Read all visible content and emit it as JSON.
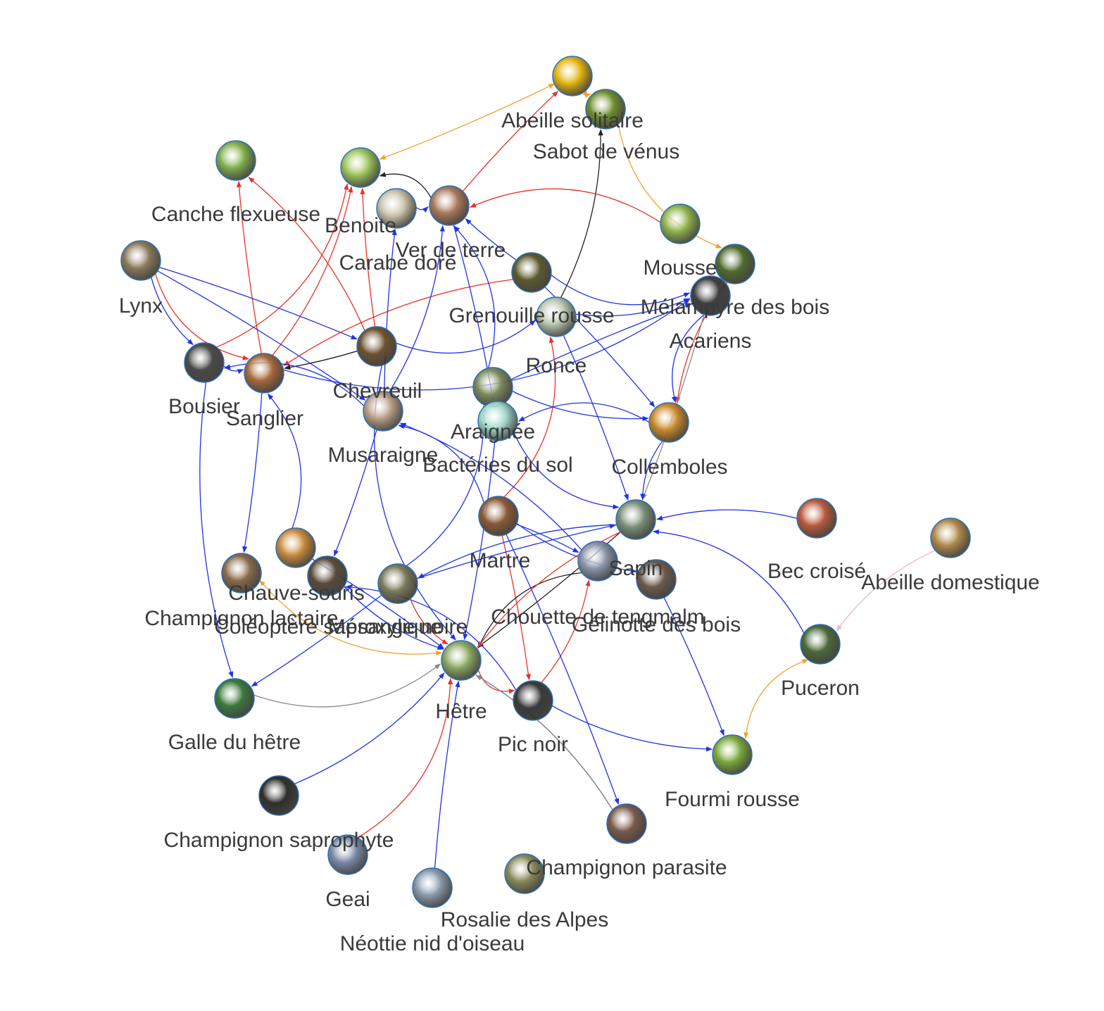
{
  "colors": {
    "predation": "#1f33e6",
    "eaten_by_red": "#e8322a",
    "pollination": "#f0a22c",
    "other": "#222222",
    "grey": "#8a8a8a",
    "pink": "#f3b2c8",
    "label": "#3a3a3a",
    "ring": "#2f6fb8"
  },
  "nodes": [
    {
      "id": "abeille_solitaire",
      "label": "Abeille solitaire",
      "icon": "sunflower-bee-photo",
      "tint": "#e3b40f"
    },
    {
      "id": "sabot_de_venus",
      "label": "Sabot de vénus",
      "icon": "orchid-photo",
      "tint": "#6f8f2c"
    },
    {
      "id": "canche_flexueuse",
      "label": "Canche flexueuse",
      "icon": "grass-photo",
      "tint": "#7fae4a"
    },
    {
      "id": "benoite",
      "label": "Benoite",
      "icon": "plant-photo",
      "tint": "#9cc45a"
    },
    {
      "id": "carabe_dore",
      "label": "Carabe doré",
      "icon": "beetle-photo",
      "tint": "#c9c0a8"
    },
    {
      "id": "ver_de_terre",
      "label": "Ver de terre",
      "icon": "worm-photo",
      "tint": "#a9795a"
    },
    {
      "id": "mousse",
      "label": "Mousse",
      "icon": "moss-photo",
      "tint": "#8fb24a"
    },
    {
      "id": "melampyre",
      "label": "Mélampyre des bois",
      "icon": "flower-photo",
      "tint": "#4f6a2e"
    },
    {
      "id": "lynx",
      "label": "Lynx",
      "icon": "lynx-photo",
      "tint": "#8a7a5a"
    },
    {
      "id": "grenouille_rousse",
      "label": "Grenouille rousse",
      "icon": "frog-photo",
      "tint": "#5e5a2e"
    },
    {
      "id": "acariens",
      "label": "Acariens",
      "icon": "mite-photo",
      "tint": "#3f3f3f"
    },
    {
      "id": "ronce",
      "label": "Ronce",
      "icon": "bramble-photo",
      "tint": "#b8c7b0"
    },
    {
      "id": "bousier",
      "label": "Bousier",
      "icon": "dung-beetle-photo",
      "tint": "#4a4a48"
    },
    {
      "id": "sanglier",
      "label": "Sanglier",
      "icon": "boar-photo",
      "tint": "#a5683a"
    },
    {
      "id": "chevreuil",
      "label": "Chevreuil",
      "icon": "deer-photo",
      "tint": "#6e5330"
    },
    {
      "id": "musaraigne",
      "label": "Musaraigne",
      "icon": "shrew-photo",
      "tint": "#b79e84"
    },
    {
      "id": "araignee",
      "label": "Araignée",
      "icon": "spider-photo",
      "tint": "#7b8a5c"
    },
    {
      "id": "bacteries_du_sol",
      "label": "Bactéries du sol",
      "icon": "bacteria-photo",
      "tint": "#9fd8c8"
    },
    {
      "id": "collemboles",
      "label": "Collemboles",
      "icon": "springtail-photo",
      "tint": "#c98a2a"
    },
    {
      "id": "sapin",
      "label": "Sapin",
      "icon": "fir-photo",
      "tint": "#7b8f78"
    },
    {
      "id": "bec_croise",
      "label": "Bec croisé",
      "icon": "crossbill-photo",
      "tint": "#b85a3a"
    },
    {
      "id": "abeille_domestique",
      "label": "Abeille domestique",
      "icon": "honeybee-photo",
      "tint": "#b08a4a"
    },
    {
      "id": "martre",
      "label": "Martre",
      "icon": "marten-photo",
      "tint": "#8a5a36"
    },
    {
      "id": "chauve_souris",
      "label": "Chauve-souris",
      "icon": "bat-photo",
      "tint": "#c88a3a"
    },
    {
      "id": "champignon_lactaire",
      "label": "Champignon lactaire",
      "icon": "mushroom-photo",
      "tint": "#8a6a4a"
    },
    {
      "id": "coleoptere_saproxylique",
      "label": "Coléoptère saproxylique",
      "icon": "saproxylic-beetle-photo",
      "tint": "#5a4a3a"
    },
    {
      "id": "mesange_noire",
      "label": "Mésange noire",
      "icon": "tit-photo",
      "tint": "#7a7a5a"
    },
    {
      "id": "chouette",
      "label": "Chouette de tengmalm",
      "icon": "owl-photo",
      "tint": "#8a94a8"
    },
    {
      "id": "gelinotte",
      "label": "Gélinotte des bois",
      "icon": "grouse-photo",
      "tint": "#6a5a4a"
    },
    {
      "id": "puceron",
      "label": "Puceron",
      "icon": "aphid-photo",
      "tint": "#4a6a3a"
    },
    {
      "id": "hetre",
      "label": "Hêtre",
      "icon": "beech-photo",
      "tint": "#8aa860"
    },
    {
      "id": "galle_du_hetre",
      "label": "Galle du hêtre",
      "icon": "gall-photo",
      "tint": "#3a7a3a"
    },
    {
      "id": "pic_noir",
      "label": "Pic noir",
      "icon": "woodpecker-photo",
      "tint": "#3a3a3a"
    },
    {
      "id": "fourmi_rousse",
      "label": "Fourmi rousse",
      "icon": "ant-photo",
      "tint": "#7aa83a"
    },
    {
      "id": "champignon_saprophyte",
      "label": "Champignon saprophyte",
      "icon": "saprophyte-photo",
      "tint": "#2e2e2a"
    },
    {
      "id": "champignon_parasite",
      "label": "Champignon parasite",
      "icon": "parasite-fungus-photo",
      "tint": "#7a5a4a"
    },
    {
      "id": "geai",
      "label": "Geai",
      "icon": "jay-photo",
      "tint": "#7a8aa8"
    },
    {
      "id": "rosalie",
      "label": "Rosalie des Alpes",
      "icon": "rosalia-photo",
      "tint": "#8a9aaa"
    },
    {
      "id": "neottie",
      "label": "Néottie nid d'oiseau",
      "icon": "orchid-nest-photo",
      "tint": "#8a8a5a"
    }
  ],
  "edges": [
    {
      "s": "abeille_solitaire",
      "t": "benoite",
      "c": "pollination",
      "both": true
    },
    {
      "s": "abeille_solitaire",
      "t": "sabot_de_venus",
      "c": "pollination",
      "both": true
    },
    {
      "s": "sabot_de_venus",
      "t": "melampyre",
      "c": "pollination",
      "both": false
    },
    {
      "s": "ver_de_terre",
      "t": "abeille_solitaire",
      "c": "eaten_by_red"
    },
    {
      "s": "ronce",
      "t": "sabot_de_venus",
      "c": "other"
    },
    {
      "s": "ver_de_terre",
      "t": "benoite",
      "c": "other"
    },
    {
      "s": "grenouille_rousse",
      "t": "ver_de_terre",
      "c": "predation"
    },
    {
      "s": "carabe_dore",
      "t": "ver_de_terre",
      "c": "predation"
    },
    {
      "s": "mousse",
      "t": "ver_de_terre",
      "c": "eaten_by_red"
    },
    {
      "s": "sanglier",
      "t": "canche_flexueuse",
      "c": "eaten_by_red"
    },
    {
      "s": "sanglier",
      "t": "benoite",
      "c": "eaten_by_red"
    },
    {
      "s": "bousier",
      "t": "benoite",
      "c": "eaten_by_red"
    },
    {
      "s": "chevreuil",
      "t": "benoite",
      "c": "eaten_by_red"
    },
    {
      "s": "chevreuil",
      "t": "canche_flexueuse",
      "c": "eaten_by_red"
    },
    {
      "s": "lynx",
      "t": "sanglier",
      "c": "eaten_by_red"
    },
    {
      "s": "lynx",
      "t": "chevreuil",
      "c": "predation"
    },
    {
      "s": "lynx",
      "t": "bousier",
      "c": "predation"
    },
    {
      "s": "sanglier",
      "t": "acariens",
      "c": "predation"
    },
    {
      "s": "chevreuil",
      "t": "sanglier",
      "c": "eaten_by_red"
    },
    {
      "s": "grenouille_rousse",
      "t": "sanglier",
      "c": "eaten_by_red"
    },
    {
      "s": "chevreuil",
      "t": "ronce",
      "c": "predation"
    },
    {
      "s": "chevreuil",
      "t": "sanglier",
      "c": "other"
    },
    {
      "s": "bousier",
      "t": "sanglier",
      "c": "predation"
    },
    {
      "s": "musaraigne",
      "t": "bousier",
      "c": "predation"
    },
    {
      "s": "musaraigne",
      "t": "carabe_dore",
      "c": "predation"
    },
    {
      "s": "musaraigne",
      "t": "ver_de_terre",
      "c": "predation"
    },
    {
      "s": "araignee",
      "t": "ver_de_terre",
      "c": "predation"
    },
    {
      "s": "araignee",
      "t": "acariens",
      "c": "predation"
    },
    {
      "s": "araignee",
      "t": "collemboles",
      "c": "predation"
    },
    {
      "s": "grenouille_rousse",
      "t": "acariens",
      "c": "predation"
    },
    {
      "s": "grenouille_rousse",
      "t": "collemboles",
      "c": "predation"
    },
    {
      "s": "melampyre",
      "t": "collemboles",
      "c": "eaten_by_red"
    },
    {
      "s": "acariens",
      "t": "collemboles",
      "c": "predation"
    },
    {
      "s": "acariens",
      "t": "sapin",
      "c": "grey"
    },
    {
      "s": "collemboles",
      "t": "sapin",
      "c": "predation"
    },
    {
      "s": "bacteries_du_sol",
      "t": "sapin",
      "c": "predation"
    },
    {
      "s": "bacteries_du_sol",
      "t": "hetre",
      "c": "predation"
    },
    {
      "s": "bec_croise",
      "t": "sapin",
      "c": "predation"
    },
    {
      "s": "puceron",
      "t": "sapin",
      "c": "predation"
    },
    {
      "s": "ronce",
      "t": "sapin",
      "c": "predation"
    },
    {
      "s": "abeille_domestique",
      "t": "puceron",
      "c": "pink"
    },
    {
      "s": "puceron",
      "t": "fourmi_rousse",
      "c": "pollination",
      "both": true
    },
    {
      "s": "gelinotte",
      "t": "fourmi_rousse",
      "c": "predation"
    },
    {
      "s": "pic_noir",
      "t": "fourmi_rousse",
      "c": "predation"
    },
    {
      "s": "martre",
      "t": "ronce",
      "c": "eaten_by_red"
    },
    {
      "s": "martre",
      "t": "chouette",
      "c": "predation"
    },
    {
      "s": "martre",
      "t": "gelinotte",
      "c": "predation"
    },
    {
      "s": "martre",
      "t": "musaraigne",
      "c": "predation"
    },
    {
      "s": "martre",
      "t": "pic_noir",
      "c": "eaten_by_red"
    },
    {
      "s": "chouette",
      "t": "musaraigne",
      "c": "predation"
    },
    {
      "s": "chouette",
      "t": "hetre",
      "c": "other"
    },
    {
      "s": "sapin",
      "t": "hetre",
      "c": "other"
    },
    {
      "s": "pic_noir",
      "t": "chouette",
      "c": "eaten_by_red"
    },
    {
      "s": "pic_noir",
      "t": "coleoptere_saproxylique",
      "c": "predation"
    },
    {
      "s": "mesange_noire",
      "t": "sapin",
      "c": "predation"
    },
    {
      "s": "mesange_noire",
      "t": "hetre",
      "c": "eaten_by_red"
    },
    {
      "s": "mesange_noire",
      "t": "araignee",
      "c": "predation"
    },
    {
      "s": "mesange_noire",
      "t": "galle_du_hetre",
      "c": "predation"
    },
    {
      "s": "sapin",
      "t": "mesange_noire",
      "c": "predation"
    },
    {
      "s": "chauve_souris",
      "t": "sanglier",
      "c": "predation"
    },
    {
      "s": "chauve_souris",
      "t": "hetre",
      "c": "predation"
    },
    {
      "s": "coleoptere_saproxylique",
      "t": "hetre",
      "c": "predation"
    },
    {
      "s": "champignon_lactaire",
      "t": "hetre",
      "c": "pollination",
      "both": true
    },
    {
      "s": "sanglier",
      "t": "champignon_lactaire",
      "c": "predation"
    },
    {
      "s": "bousier",
      "t": "galle_du_hetre",
      "c": "predation"
    },
    {
      "s": "galle_du_hetre",
      "t": "hetre",
      "c": "grey"
    },
    {
      "s": "musaraigne",
      "t": "coleoptere_saproxylique",
      "c": "predation"
    },
    {
      "s": "champignon_saprophyte",
      "t": "hetre",
      "c": "predation"
    },
    {
      "s": "geai",
      "t": "hetre",
      "c": "eaten_by_red"
    },
    {
      "s": "rosalie",
      "t": "hetre",
      "c": "predation"
    },
    {
      "s": "champignon_parasite",
      "t": "hetre",
      "c": "predation"
    },
    {
      "s": "hetre",
      "t": "pic_noir",
      "c": "eaten_by_red"
    },
    {
      "s": "martre",
      "t": "champignon_parasite",
      "c": "predation"
    },
    {
      "s": "champignon_parasite",
      "t": "hetre",
      "c": "grey"
    },
    {
      "s": "chevreuil",
      "t": "hetre",
      "c": "predation"
    },
    {
      "s": "lynx",
      "t": "musaraigne",
      "c": "predation"
    },
    {
      "s": "ronce",
      "t": "acariens",
      "c": "predation"
    },
    {
      "s": "collemboles",
      "t": "bacteries_du_sol",
      "c": "predation"
    },
    {
      "s": "ver_de_terre",
      "t": "bacteries_du_sol",
      "c": "predation"
    },
    {
      "s": "sapin",
      "t": "hetre",
      "c": "eaten_by_red"
    }
  ]
}
